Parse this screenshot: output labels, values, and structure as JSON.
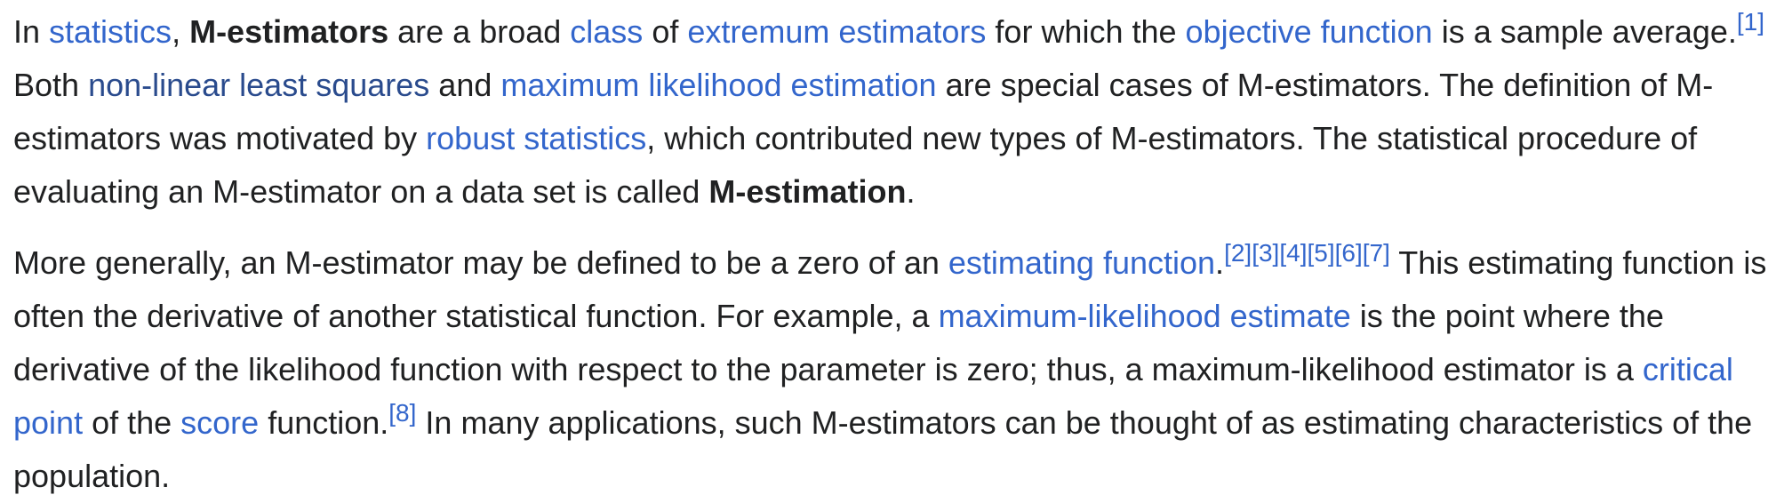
{
  "article": {
    "p1": {
      "t1": "In ",
      "link_statistics": "statistics",
      "t2": ", ",
      "bold_m_estimators": "M-estimators",
      "t3": " are a broad ",
      "link_class": "class",
      "t4": " of ",
      "link_extremum": "extremum estimators",
      "t5": " for which the ",
      "link_objective": "objective function",
      "t6": " is a sample average.",
      "ref1": "[1]",
      "t7": " Both ",
      "link_nlls": "non-linear least squares",
      "t8": " and ",
      "link_mle": "maximum likelihood estimation",
      "t9": " are special cases of M-estimators. The definition of M-estimators was motivated by ",
      "link_robust": "robust statistics",
      "t10": ", which contributed new types of M-estimators. The statistical procedure of evaluating an M-estimator on a data set is called ",
      "bold_m_estimation": "M-estimation",
      "t11": "."
    },
    "p2": {
      "t1": "More generally, an M-estimator may be defined to be a zero of an ",
      "link_estimating": "estimating function",
      "t2": ".",
      "refs": [
        "[2]",
        "[3]",
        "[4]",
        "[5]",
        "[6]",
        "[7]"
      ],
      "t3": " This estimating function is often the derivative of another statistical function. For example, a ",
      "link_ml_estimate": "maximum-likelihood estimate",
      "t4": " is the point where the derivative of the likelihood function with respect to the parameter is zero; thus, a maximum-likelihood estimator is a ",
      "link_critical": "critical point",
      "t5": " of the ",
      "link_score": "score",
      "t6": " function.",
      "ref8": "[8]",
      "t7": " In many applications, such M-estimators can be thought of as estimating characteristics of the population."
    }
  },
  "colors": {
    "link": "#3366cc",
    "visited_link": "#2a4b8d",
    "text": "#202122",
    "background": "#ffffff"
  }
}
